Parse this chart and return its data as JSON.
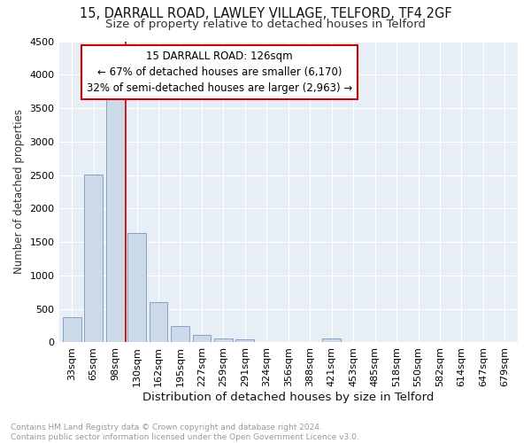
{
  "title": "15, DARRALL ROAD, LAWLEY VILLAGE, TELFORD, TF4 2GF",
  "subtitle": "Size of property relative to detached houses in Telford",
  "xlabel": "Distribution of detached houses by size in Telford",
  "ylabel": "Number of detached properties",
  "bar_color": "#ccd9e8",
  "bar_edge_color": "#7799bb",
  "bg_color": "#e8eef5",
  "categories": [
    "33sqm",
    "65sqm",
    "98sqm",
    "130sqm",
    "162sqm",
    "195sqm",
    "227sqm",
    "259sqm",
    "291sqm",
    "324sqm",
    "356sqm",
    "388sqm",
    "421sqm",
    "453sqm",
    "485sqm",
    "518sqm",
    "550sqm",
    "582sqm",
    "614sqm",
    "647sqm",
    "679sqm"
  ],
  "values": [
    380,
    2510,
    3730,
    1640,
    600,
    240,
    110,
    65,
    45,
    0,
    0,
    0,
    60,
    0,
    0,
    0,
    0,
    0,
    0,
    0,
    0
  ],
  "vline_x_idx": 3,
  "vline_color": "#cc0000",
  "annotation_text": "15 DARRALL ROAD: 126sqm\n← 67% of detached houses are smaller (6,170)\n32% of semi-detached houses are larger (2,963) →",
  "annotation_box_color": "#ffffff",
  "annotation_box_edge": "#cc0000",
  "ylim": [
    0,
    4500
  ],
  "yticks": [
    0,
    500,
    1000,
    1500,
    2000,
    2500,
    3000,
    3500,
    4000,
    4500
  ],
  "footer": "Contains HM Land Registry data © Crown copyright and database right 2024.\nContains public sector information licensed under the Open Government Licence v3.0.",
  "title_fontsize": 10.5,
  "subtitle_fontsize": 9.5,
  "ylabel_fontsize": 8.5,
  "xlabel_fontsize": 9.5,
  "tick_fontsize": 8,
  "footer_fontsize": 6.5
}
